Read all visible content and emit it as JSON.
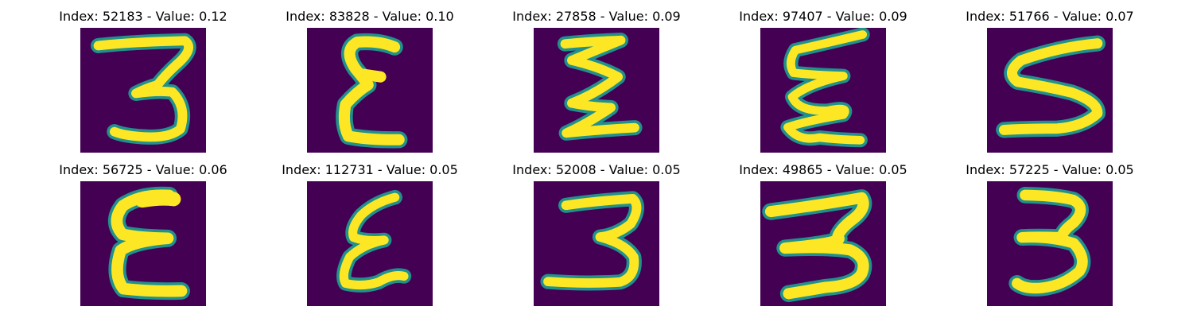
{
  "colors": {
    "background": "#440154",
    "stroke_outer": "#21918c",
    "stroke_mid": "#5ec962",
    "stroke_inner": "#fde725"
  },
  "panels": [
    {
      "title": "Index: 52183 - Value: 0.12",
      "depicts": "3"
    },
    {
      "title": "Index: 83828 - Value: 0.10",
      "depicts": "E"
    },
    {
      "title": "Index: 27858 - Value: 0.09",
      "depicts": "Ʃ"
    },
    {
      "title": "Index: 97407 - Value: 0.09",
      "depicts": "Ʃ"
    },
    {
      "title": "Index: 51766 - Value: 0.07",
      "depicts": "S"
    },
    {
      "title": "Index: 56725 - Value: 0.06",
      "depicts": "E"
    },
    {
      "title": "Index: 112731 - Value: 0.05",
      "depicts": "E"
    },
    {
      "title": "Index: 52008 - Value: 0.05",
      "depicts": "3"
    },
    {
      "title": "Index: 49865 - Value: 0.05",
      "depicts": "3"
    },
    {
      "title": "Index: 57225 - Value: 0.05",
      "depicts": "3"
    }
  ]
}
